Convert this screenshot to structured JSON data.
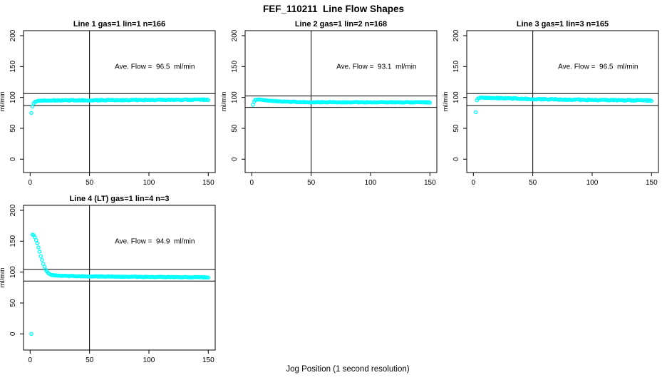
{
  "title": "FEF_110211  Line Flow Shapes",
  "xlabel": "Jog Position (1 second resolution)",
  "colors": {
    "points": "#00FFFF",
    "axis": "#000000",
    "background": "#FFFFFF"
  },
  "axes": {
    "xticks": [
      0,
      50,
      100,
      150
    ],
    "yticks": [
      0,
      50,
      100,
      150,
      200
    ],
    "ylabel": "ml/min",
    "xlim": [
      0,
      150
    ],
    "ylim": [
      0,
      200
    ],
    "vline_x": 50
  },
  "chart_data": [
    {
      "type": "scatter",
      "title": "Line 1 gas=1 lin=1 n=166",
      "n": 166,
      "ave_flow": 96.5,
      "annotation": "Ave. Flow =  96.5  ml/min",
      "annotation_at": {
        "x": 105,
        "y": 150
      },
      "hlines": [
        106.2,
        86.9
      ],
      "noise": 0.7,
      "keypoints": [
        [
          1,
          75
        ],
        [
          2,
          85.5
        ],
        [
          3,
          90
        ],
        [
          4,
          92.5
        ],
        [
          5,
          93.8
        ],
        [
          7,
          94.6
        ],
        [
          10,
          95
        ],
        [
          20,
          95.2
        ],
        [
          40,
          95.4
        ],
        [
          70,
          95.7
        ],
        [
          100,
          96
        ],
        [
          130,
          96.2
        ],
        [
          150,
          96.3
        ]
      ]
    },
    {
      "type": "scatter",
      "title": "Line 2 gas=1 lin=2 n=168",
      "n": 168,
      "ave_flow": 93.1,
      "annotation": "Ave. Flow =  93.1  ml/min",
      "annotation_at": {
        "x": 105,
        "y": 150
      },
      "hlines": [
        102.4,
        83.8
      ],
      "noise": 0.6,
      "keypoints": [
        [
          1,
          88
        ],
        [
          2,
          93.5
        ],
        [
          3,
          95.8
        ],
        [
          5,
          96.8
        ],
        [
          8,
          96.4
        ],
        [
          12,
          95.3
        ],
        [
          18,
          94.3
        ],
        [
          25,
          93.4
        ],
        [
          35,
          92.8
        ],
        [
          50,
          92.4
        ],
        [
          80,
          92.2
        ],
        [
          120,
          92.1
        ],
        [
          150,
          92
        ]
      ]
    },
    {
      "type": "scatter",
      "title": "Line 3 gas=1 lin=3 n=165",
      "n": 165,
      "ave_flow": 96.5,
      "annotation": "Ave. Flow =  96.5  ml/min",
      "annotation_at": {
        "x": 105,
        "y": 150
      },
      "hlines": [
        106.2,
        86.9
      ],
      "noise": 0.8,
      "keypoints": [
        [
          2,
          76
        ],
        [
          3,
          95
        ],
        [
          4,
          98.5
        ],
        [
          6,
          99.8
        ],
        [
          10,
          99.6
        ],
        [
          20,
          99
        ],
        [
          35,
          98.2
        ],
        [
          55,
          97.3
        ],
        [
          80,
          96.5
        ],
        [
          110,
          95.8
        ],
        [
          135,
          95.3
        ],
        [
          150,
          95
        ]
      ]
    },
    {
      "type": "scatter",
      "title": "Line 4 (LT) gas=1 lin=4 n=3",
      "n": 3,
      "ave_flow": 94.9,
      "annotation": "Ave. Flow =  94.9  ml/min",
      "annotation_at": {
        "x": 105,
        "y": 150
      },
      "hlines": [
        104.4,
        85.4
      ],
      "noise": 0.5,
      "keypoints": [
        [
          1,
          0
        ],
        [
          2,
          161
        ],
        [
          3,
          159.5
        ],
        [
          4,
          156.5
        ],
        [
          5,
          152
        ],
        [
          6,
          146.5
        ],
        [
          7,
          140
        ],
        [
          8,
          133
        ],
        [
          9,
          126
        ],
        [
          10,
          119.5
        ],
        [
          11,
          113.5
        ],
        [
          12,
          108.5
        ],
        [
          13,
          104.5
        ],
        [
          14,
          101.5
        ],
        [
          15,
          99.2
        ],
        [
          16,
          97.5
        ],
        [
          17,
          96.3
        ],
        [
          18,
          95.5
        ],
        [
          20,
          94.8
        ],
        [
          25,
          94.2
        ],
        [
          30,
          93.8
        ],
        [
          40,
          93.4
        ],
        [
          60,
          93
        ],
        [
          90,
          92.4
        ],
        [
          120,
          91.9
        ],
        [
          150,
          91.4
        ]
      ]
    }
  ]
}
